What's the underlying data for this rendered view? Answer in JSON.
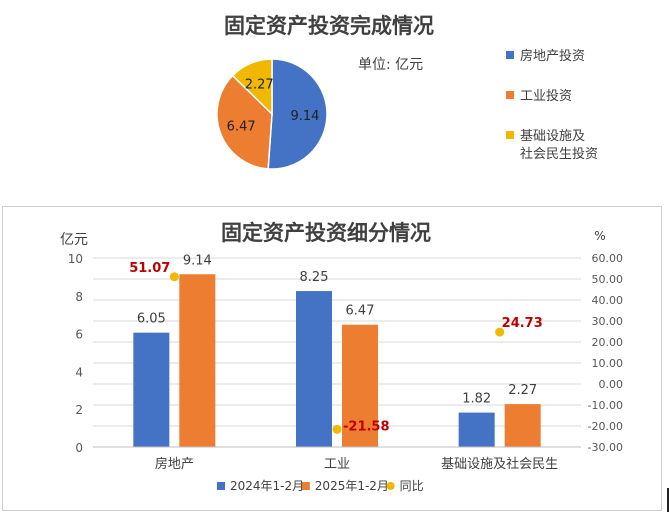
{
  "chart_data": [
    {
      "type": "pie",
      "title": "固定资产投资完成情况",
      "unit_label": "单位: 亿元",
      "slices": [
        {
          "label": "房地产投资",
          "value": 9.14,
          "color": "#4472C4"
        },
        {
          "label": "工业投资",
          "value": 6.47,
          "color": "#ED7D31"
        },
        {
          "label": "基础设施及社会民生投资",
          "value": 2.27,
          "color": "#F0B800"
        }
      ],
      "legend": [
        {
          "lines": [
            "房地产投资"
          ],
          "color": "#4472C4"
        },
        {
          "lines": [
            "工业投资"
          ],
          "color": "#ED7D31"
        },
        {
          "lines": [
            "基础设施及",
            "社会民生投资"
          ],
          "color": "#F0B800"
        }
      ],
      "legend_position": "right"
    },
    {
      "type": "bar",
      "title": "固定资产投资细分情况",
      "categories": [
        "房地产",
        "工业",
        "基础设施及社会民生"
      ],
      "series": [
        {
          "name": "2024年1-2月",
          "values": [
            6.05,
            8.25,
            1.82
          ],
          "color": "#4472C4",
          "axis": "left"
        },
        {
          "name": "2025年1-2月",
          "values": [
            9.14,
            6.47,
            2.27
          ],
          "color": "#ED7D31",
          "axis": "left"
        },
        {
          "name": "同比",
          "values": [
            51.07,
            -21.58,
            24.73
          ],
          "color": "#F0B800",
          "axis": "right",
          "marker": "scatter",
          "label_color": "#C00000"
        }
      ],
      "ylabel": "亿元",
      "ylabel_right": "%",
      "ylim": [
        0,
        10
      ],
      "yticks": [
        "0",
        "2",
        "4",
        "6",
        "8",
        "10"
      ],
      "ylim_right": [
        -30,
        60
      ],
      "yticks_right": [
        "-30.00",
        "-20.00",
        "-10.00",
        "0.00",
        "10.00",
        "20.00",
        "30.00",
        "40.00",
        "50.00",
        "60.00"
      ],
      "legend_position": "bottom",
      "grid": true
    }
  ]
}
